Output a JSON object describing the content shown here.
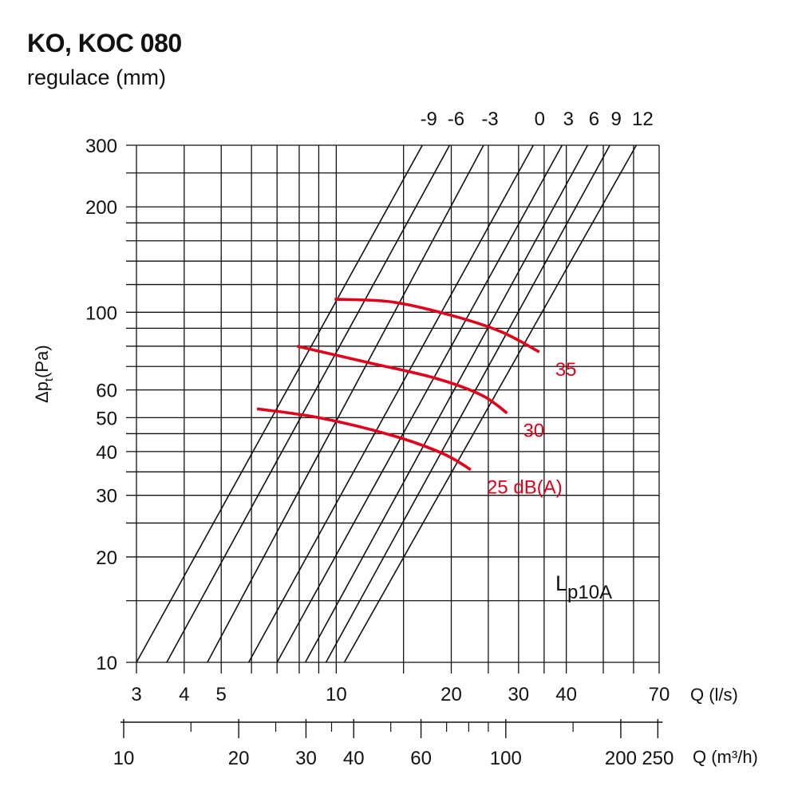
{
  "header": {
    "title": "KO, KOC 080",
    "subtitle": "regulace (mm)"
  },
  "colors": {
    "grid": "#111111",
    "lines": "#111111",
    "noise": "#e2001a"
  },
  "chart_data": {
    "type": "line",
    "x_scale": "log",
    "y_scale": "log",
    "xlim": [
      3,
      70
    ],
    "ylim": [
      10,
      300
    ],
    "grid": true,
    "xlabel": "Q (l/s)",
    "x2label": "Q (m³/h)",
    "ylabel_main": "Δp",
    "ylabel_sub": "t",
    "ylabel_unit": "(Pa)",
    "x_ticks": [
      {
        "v": 3,
        "label": "3"
      },
      {
        "v": 4,
        "label": "4"
      },
      {
        "v": 5,
        "label": "5"
      },
      {
        "v": 10,
        "label": "10"
      },
      {
        "v": 20,
        "label": "20"
      },
      {
        "v": 30,
        "label": "30"
      },
      {
        "v": 40,
        "label": "40"
      },
      {
        "v": 70,
        "label": "70"
      }
    ],
    "x_grid": [
      3,
      4,
      5,
      6,
      7,
      8,
      9,
      10,
      15,
      20,
      25,
      30,
      35,
      40,
      50,
      60,
      70
    ],
    "y_ticks": [
      {
        "v": 10,
        "label": "10"
      },
      {
        "v": 20,
        "label": "20"
      },
      {
        "v": 30,
        "label": "30"
      },
      {
        "v": 40,
        "label": "40"
      },
      {
        "v": 50,
        "label": "50"
      },
      {
        "v": 60,
        "label": "60"
      },
      {
        "v": 100,
        "label": "100"
      },
      {
        "v": 200,
        "label": "200"
      },
      {
        "v": 300,
        "label": "300"
      }
    ],
    "y_grid": [
      10,
      15,
      20,
      25,
      30,
      35,
      40,
      45,
      50,
      60,
      70,
      80,
      90,
      100,
      120,
      140,
      160,
      180,
      200,
      250,
      300
    ],
    "x2_ticks": [
      {
        "v": 10,
        "label": "10"
      },
      {
        "v": 20,
        "label": "20"
      },
      {
        "v": 30,
        "label": "30"
      },
      {
        "v": 40,
        "label": "40"
      },
      {
        "v": 60,
        "label": "60"
      },
      {
        "v": 100,
        "label": "100"
      },
      {
        "v": 200,
        "label": "200"
      },
      {
        "v": 250,
        "label": "250"
      }
    ],
    "x2_minor": [
      15,
      25,
      35,
      50,
      70,
      80,
      90,
      150
    ],
    "regulation_lines": [
      {
        "name": "-9",
        "x_at_10": 3.0,
        "x_at_300": 16.8
      },
      {
        "name": "-6",
        "x_at_10": 3.6,
        "x_at_300": 19.8
      },
      {
        "name": "-3",
        "x_at_10": 4.6,
        "x_at_300": 24.3
      },
      {
        "name": "0",
        "x_at_10": 5.9,
        "x_at_300": 32.8
      },
      {
        "name": "3",
        "x_at_10": 7.0,
        "x_at_300": 39.0
      },
      {
        "name": "6",
        "x_at_10": 8.3,
        "x_at_300": 45.5
      },
      {
        "name": "9",
        "x_at_10": 9.4,
        "x_at_300": 52.0
      },
      {
        "name": "12",
        "x_at_10": 10.5,
        "x_at_300": 61.0
      }
    ],
    "series": [
      {
        "name": "35",
        "points": [
          [
            9.9,
            109
          ],
          [
            14,
            107
          ],
          [
            20,
            98
          ],
          [
            27,
            88
          ],
          [
            34,
            77
          ]
        ]
      },
      {
        "name": "30",
        "points": [
          [
            7.9,
            80
          ],
          [
            12,
            72
          ],
          [
            18,
            65
          ],
          [
            24,
            58
          ],
          [
            28,
            51.5
          ]
        ]
      },
      {
        "name": "25 dB(A)",
        "points": [
          [
            6.2,
            53
          ],
          [
            9,
            50
          ],
          [
            14,
            44.5
          ],
          [
            19,
            39.5
          ],
          [
            22.5,
            35.5
          ]
        ]
      }
    ],
    "annotation": {
      "main": "L",
      "sub": "p10A"
    }
  }
}
